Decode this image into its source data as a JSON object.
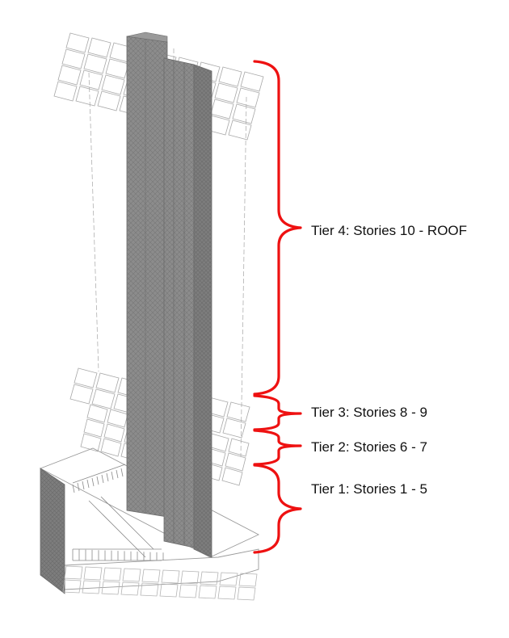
{
  "tiers": [
    {
      "id": "tier4",
      "label": "Tier 4: Stories 10 - ROOF"
    },
    {
      "id": "tier3",
      "label": "Tier 3: Stories 8 - 9"
    },
    {
      "id": "tier2",
      "label": "Tier 2: Stories 6 - 7"
    },
    {
      "id": "tier1",
      "label": "Tier 1: Stories 1 - 5"
    }
  ],
  "colors": {
    "bracket": "#ee1111",
    "core_fill": "#8c8c8c",
    "core_mesh": "#6e6e6e",
    "frame_line": "#9a9a9a",
    "cell_line": "#b4b4b4",
    "text": "#111111"
  }
}
